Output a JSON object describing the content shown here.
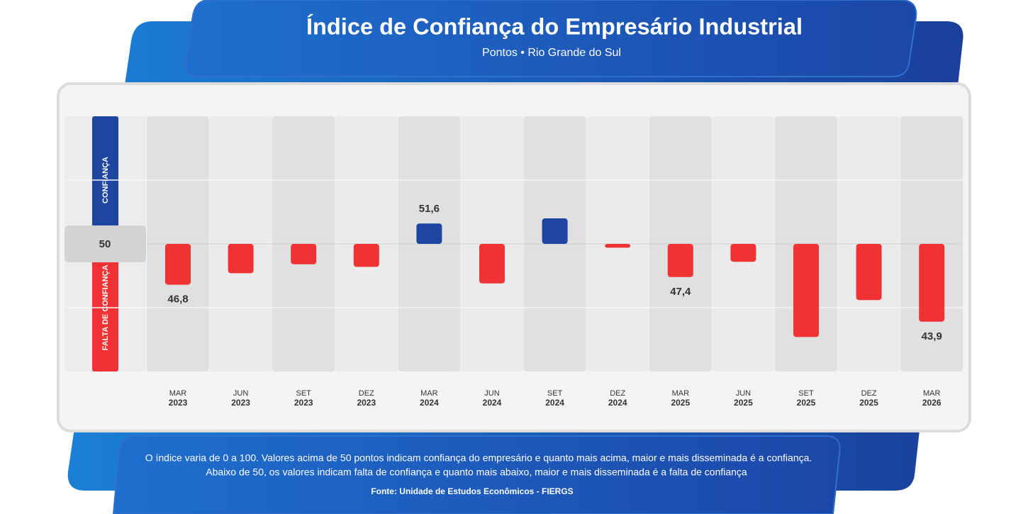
{
  "chart_data": {
    "type": "bar",
    "title": "Índice de Confiança do Empresário Industrial",
    "subtitle": "Pontos • Rio Grande do Sul",
    "side_labels": {
      "above": "CONFIANÇA",
      "below": "FALTA DE CONFIANÇA"
    },
    "categories": [
      {
        "month": "MAR",
        "year": "2023"
      },
      {
        "month": "JUN",
        "year": "2023"
      },
      {
        "month": "SET",
        "year": "2023"
      },
      {
        "month": "DEZ",
        "year": "2023"
      },
      {
        "month": "MAR",
        "year": "2024"
      },
      {
        "month": "JUN",
        "year": "2024"
      },
      {
        "month": "SET",
        "year": "2024"
      },
      {
        "month": "DEZ",
        "year": "2024"
      },
      {
        "month": "MAR",
        "year": "2025"
      },
      {
        "month": "JUN",
        "year": "2025"
      },
      {
        "month": "SET",
        "year": "2025"
      },
      {
        "month": "DEZ",
        "year": "2025"
      },
      {
        "month": "MAR",
        "year": "2026"
      }
    ],
    "values": [
      46.8,
      47.7,
      48.4,
      48.2,
      51.6,
      46.9,
      52.0,
      49.7,
      47.4,
      48.6,
      42.7,
      45.6,
      43.9
    ],
    "value_labels": [
      "46,8",
      null,
      null,
      null,
      "51,6",
      null,
      null,
      null,
      "47,4",
      null,
      null,
      null,
      "43,9"
    ],
    "baseline": 50,
    "color_above": "#1e46a0",
    "color_below": "#f03234",
    "ylim": [
      40,
      60
    ],
    "yticks": [
      50
    ],
    "grid": true,
    "notes": [
      "O índice varia de 0 a 100. Valores acima de 50 pontos indicam confiança do empresário e quanto mais acima, maior e mais disseminada é a confiança.",
      "Abaixo de 50, os valores indicam falta de confiança e quanto mais abaixo, maior e mais disseminada é a falta de confiança"
    ],
    "source": "Fonte: Unidade de Estudos Econômicos - FIERGS"
  }
}
